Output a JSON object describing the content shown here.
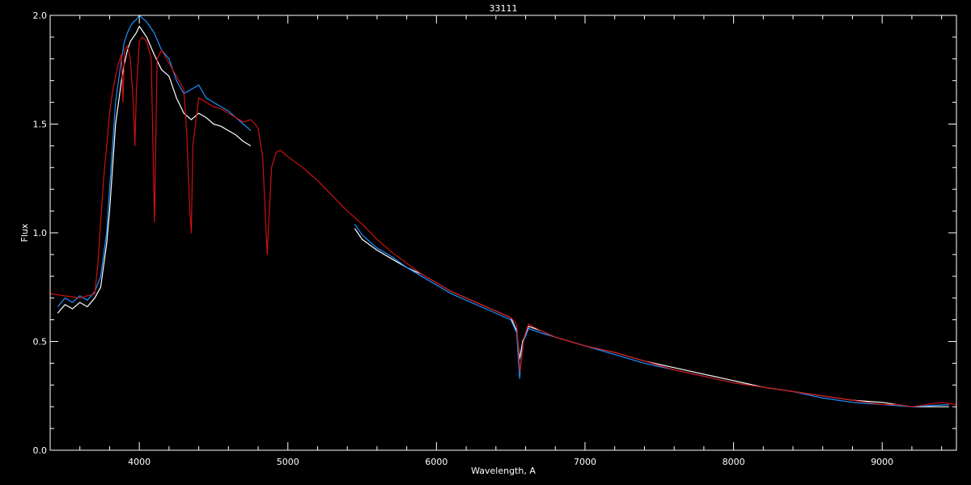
{
  "chart_data": {
    "type": "line",
    "title": "33111",
    "xlabel": "Wavelength, A",
    "ylabel": "Flux",
    "xlim": [
      3400,
      9500
    ],
    "ylim": [
      0.0,
      2.0
    ],
    "x_ticks": [
      4000,
      5000,
      6000,
      7000,
      8000,
      9000
    ],
    "x_tick_labels": [
      "4000",
      "5000",
      "6000",
      "7000",
      "8000",
      "9000"
    ],
    "y_ticks": [
      0.0,
      0.5,
      1.0,
      1.5,
      2.0
    ],
    "y_tick_labels": [
      "0.0",
      "0.5",
      "1.0",
      "1.5",
      "2.0"
    ],
    "grid": false,
    "colors": {
      "background": "#000000",
      "axes": "#ffffff"
    },
    "series": [
      {
        "color": "#ffffff",
        "segments": [
          {
            "x": [
              3450,
              3500,
              3550,
              3600,
              3650,
              3700,
              3740,
              3760,
              3780,
              3800,
              3820,
              3840,
              3860,
              3880,
              3900,
              3920,
              3940,
              3960,
              3980,
              4000,
              4050,
              4100,
              4150,
              4200,
              4250,
              4300,
              4350,
              4400,
              4450,
              4500,
              4550,
              4600,
              4650,
              4700,
              4750
            ],
            "y": [
              0.63,
              0.67,
              0.65,
              0.68,
              0.66,
              0.7,
              0.75,
              0.85,
              0.95,
              1.1,
              1.3,
              1.5,
              1.6,
              1.7,
              1.78,
              1.84,
              1.88,
              1.9,
              1.92,
              1.95,
              1.9,
              1.82,
              1.75,
              1.72,
              1.62,
              1.55,
              1.52,
              1.55,
              1.53,
              1.5,
              1.49,
              1.47,
              1.45,
              1.42,
              1.4
            ]
          },
          {
            "x": [
              5450,
              5500,
              5600,
              5700,
              5800,
              5900,
              6000,
              6100,
              6200,
              6300,
              6400,
              6500,
              6540,
              6560,
              6580,
              6620,
              6700,
              6800,
              6900,
              7000,
              7200,
              7400,
              7600,
              7800,
              8000,
              8200,
              8400,
              8600,
              8800,
              9000,
              9200,
              9450
            ],
            "y": [
              1.02,
              0.97,
              0.92,
              0.88,
              0.84,
              0.81,
              0.77,
              0.73,
              0.7,
              0.67,
              0.64,
              0.61,
              0.55,
              0.42,
              0.5,
              0.57,
              0.55,
              0.52,
              0.5,
              0.48,
              0.45,
              0.41,
              0.38,
              0.35,
              0.32,
              0.29,
              0.27,
              0.25,
              0.23,
              0.22,
              0.2,
              0.2
            ]
          }
        ]
      },
      {
        "color": "#1e90ff",
        "segments": [
          {
            "x": [
              3450,
              3500,
              3550,
              3600,
              3650,
              3700,
              3740,
              3760,
              3780,
              3800,
              3820,
              3840,
              3860,
              3880,
              3900,
              3920,
              3940,
              3960,
              3980,
              4000,
              4050,
              4100,
              4150,
              4200,
              4250,
              4300,
              4350,
              4400,
              4450,
              4500,
              4550,
              4600,
              4650,
              4700,
              4750
            ],
            "y": [
              0.66,
              0.7,
              0.68,
              0.71,
              0.69,
              0.73,
              0.8,
              0.9,
              1.0,
              1.2,
              1.4,
              1.6,
              1.7,
              1.8,
              1.88,
              1.92,
              1.95,
              1.97,
              1.98,
              2.0,
              1.97,
              1.92,
              1.84,
              1.8,
              1.7,
              1.64,
              1.66,
              1.68,
              1.62,
              1.6,
              1.58,
              1.56,
              1.53,
              1.5,
              1.47
            ]
          },
          {
            "x": [
              5450,
              5500,
              5600,
              5700,
              5800,
              5900,
              6000,
              6100,
              6200,
              6300,
              6400,
              6500,
              6540,
              6560,
              6580,
              6620,
              6700,
              6800,
              6900,
              7000,
              7200,
              7400,
              7600,
              7800,
              8000,
              8200,
              8400,
              8600,
              8800,
              9000,
              9200,
              9450
            ],
            "y": [
              1.04,
              0.99,
              0.93,
              0.89,
              0.84,
              0.8,
              0.76,
              0.72,
              0.69,
              0.66,
              0.63,
              0.6,
              0.54,
              0.33,
              0.49,
              0.56,
              0.54,
              0.52,
              0.5,
              0.48,
              0.44,
              0.4,
              0.37,
              0.34,
              0.31,
              0.29,
              0.27,
              0.24,
              0.22,
              0.21,
              0.2,
              0.21
            ]
          }
        ]
      },
      {
        "color": "#cc1111",
        "segments": [
          {
            "x": [
              3400,
              3500,
              3600,
              3650,
              3700,
              3720,
              3740,
              3760,
              3780,
              3800,
              3820,
              3840,
              3860,
              3880,
              3890,
              3900,
              3920,
              3940,
              3960,
              3970,
              3980,
              4000,
              4020,
              4050,
              4080,
              4102,
              4120,
              4150,
              4200,
              4250,
              4300,
              4320,
              4340,
              4350,
              4360,
              4400,
              4450,
              4500,
              4550,
              4600,
              4650,
              4700,
              4750,
              4780,
              4800,
              4830,
              4861,
              4890,
              4920,
              4950,
              5000,
              5100,
              5200,
              5300,
              5400,
              5500,
              5600,
              5700,
              5800,
              5900,
              6000,
              6100,
              6200,
              6300,
              6400,
              6500,
              6540,
              6563,
              6590,
              6620,
              6700,
              6800,
              6900,
              7000,
              7200,
              7400,
              7600,
              7800,
              8000,
              8200,
              8400,
              8500,
              8600,
              8700,
              8800,
              8900,
              9000,
              9100,
              9200,
              9300,
              9400,
              9500
            ],
            "y": [
              0.72,
              0.71,
              0.7,
              0.71,
              0.72,
              0.85,
              1.05,
              1.25,
              1.4,
              1.55,
              1.65,
              1.72,
              1.78,
              1.82,
              1.6,
              1.84,
              1.86,
              1.8,
              1.6,
              1.4,
              1.65,
              1.88,
              1.9,
              1.88,
              1.8,
              1.05,
              1.8,
              1.84,
              1.78,
              1.72,
              1.66,
              1.45,
              1.1,
              1.0,
              1.4,
              1.62,
              1.6,
              1.58,
              1.57,
              1.55,
              1.53,
              1.51,
              1.52,
              1.5,
              1.48,
              1.35,
              0.9,
              1.3,
              1.37,
              1.38,
              1.35,
              1.3,
              1.24,
              1.17,
              1.1,
              1.04,
              0.97,
              0.91,
              0.86,
              0.81,
              0.77,
              0.73,
              0.7,
              0.67,
              0.64,
              0.61,
              0.58,
              0.36,
              0.52,
              0.58,
              0.55,
              0.52,
              0.5,
              0.48,
              0.45,
              0.41,
              0.37,
              0.34,
              0.31,
              0.29,
              0.27,
              0.26,
              0.25,
              0.24,
              0.23,
              0.22,
              0.21,
              0.21,
              0.2,
              0.21,
              0.22,
              0.21
            ]
          }
        ]
      }
    ]
  }
}
